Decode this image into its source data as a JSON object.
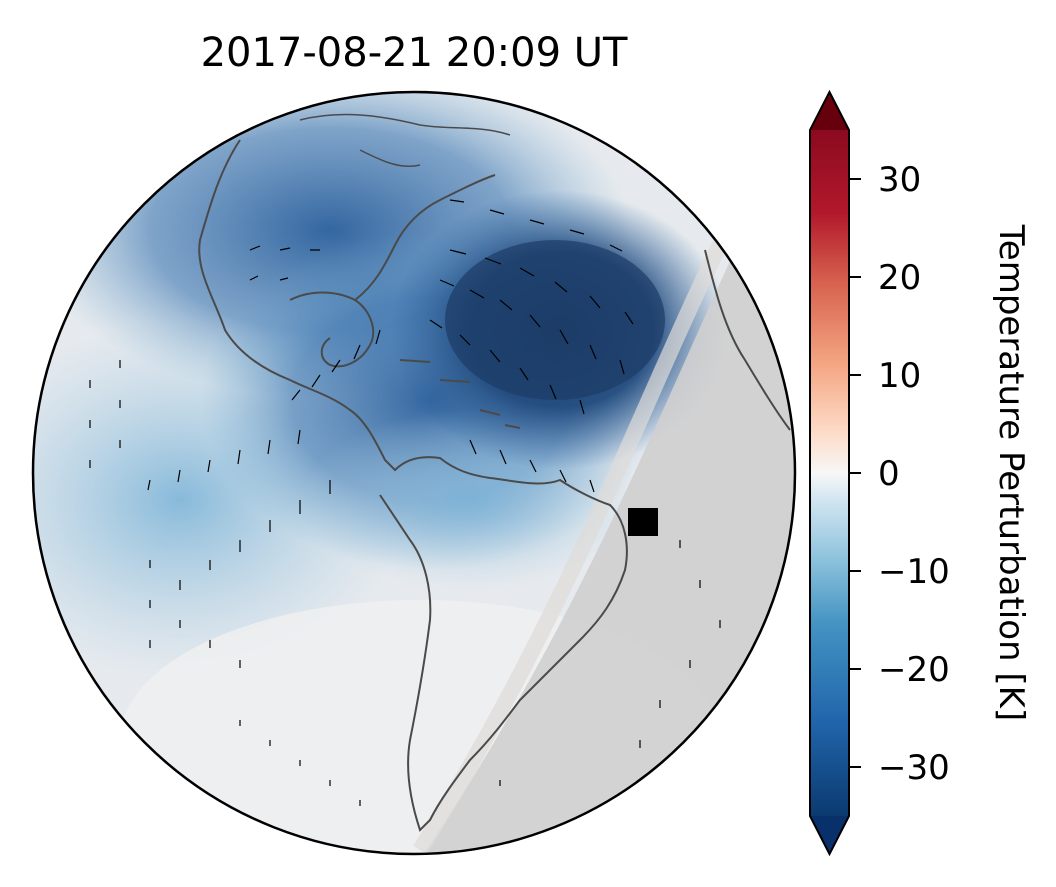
{
  "chart_data": {
    "type": "heatmap",
    "title": "2017-08-21  20:09 UT",
    "projection": "orthographic globe centered on the Americas",
    "field": "Temperature Perturbation",
    "colorbar": {
      "label": "Temperature Perturbation [K]",
      "ticks": [
        30,
        20,
        10,
        0,
        -10,
        -20,
        -30
      ],
      "tick_labels": [
        "30",
        "20",
        "10",
        "0",
        "−10",
        "−20",
        "−30"
      ],
      "range": [
        -35,
        35
      ],
      "colormap": "RdBu_r",
      "extend": "both",
      "colors": {
        "low": "#08306b",
        "mid": "#f7f7f7",
        "high": "#67000d"
      }
    },
    "features": {
      "minimum_value_region": "central North Atlantic, approx. -30 K",
      "cool_band": "eastern North America to Caribbean, approx. -20 K",
      "night_side_shading": "gray on eastern limb",
      "marker": "black square near eastern Brazil",
      "wind_vectors": "black short line segments over globe",
      "coastlines": "dark gray"
    }
  }
}
